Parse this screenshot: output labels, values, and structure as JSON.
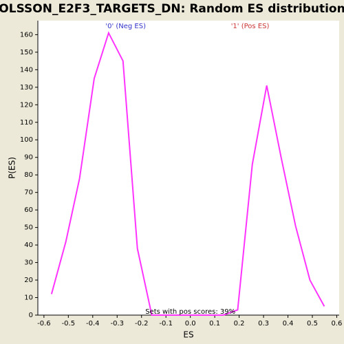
{
  "chart_data": {
    "type": "line",
    "title": "OLSSON_E2F3_TARGETS_DN: Random ES distribution",
    "xlabel": "ES",
    "ylabel": "P(ES)",
    "annotations": [
      {
        "text": "'0' (Neg ES)",
        "color": "#3333cc",
        "x": -0.265
      },
      {
        "text": "'1' (Pos ES)",
        "color": "#cc3333",
        "x": 0.245
      },
      {
        "text": "Sets with pos scores: 39%",
        "color": "#000000",
        "x": 0.0
      }
    ],
    "x": [
      -0.569,
      -0.51,
      -0.454,
      -0.394,
      -0.335,
      -0.276,
      -0.217,
      -0.158,
      -0.099,
      -0.04,
      0.018,
      0.077,
      0.135,
      0.194,
      0.254,
      0.313,
      0.372,
      0.431,
      0.49,
      0.549
    ],
    "series": [
      {
        "color": "#ff33ff",
        "values": [
          12,
          42,
          78,
          135,
          161,
          145,
          38,
          0,
          0,
          0,
          0,
          0,
          0,
          3,
          86,
          131,
          90,
          51,
          20,
          5
        ]
      }
    ],
    "xlim": [
      -0.625,
      0.61
    ],
    "ylim": [
      0,
      168
    ],
    "xticks": [
      -0.6,
      -0.5,
      -0.4,
      -0.3,
      -0.2,
      -0.1,
      {
        "value": 0,
        "label": "0.0"
      },
      0.1,
      0.2,
      0.3,
      0.4,
      0.5,
      0.6
    ],
    "yticks": [
      0,
      10,
      20,
      30,
      40,
      50,
      60,
      70,
      80,
      90,
      100,
      110,
      120,
      130,
      140,
      150,
      160
    ]
  }
}
